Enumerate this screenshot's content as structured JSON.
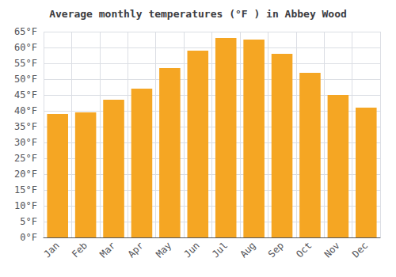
{
  "chart_data": {
    "type": "bar",
    "title": "Average monthly temperatures (°F ) in Abbey Wood",
    "categories": [
      "Jan",
      "Feb",
      "Mar",
      "Apr",
      "May",
      "Jun",
      "Jul",
      "Aug",
      "Sep",
      "Oct",
      "Nov",
      "Dec"
    ],
    "values": [
      39,
      39.5,
      43.5,
      47,
      53.5,
      59,
      63,
      62.5,
      58,
      52,
      45,
      41
    ],
    "color": "#F5A623",
    "ylim": [
      0,
      65
    ],
    "yticks": [
      {
        "value": 0,
        "label": "0°F"
      },
      {
        "value": 5,
        "label": "5°F"
      },
      {
        "value": 10,
        "label": "10°F"
      },
      {
        "value": 15,
        "label": "15°F"
      },
      {
        "value": 20,
        "label": "20°F"
      },
      {
        "value": 25,
        "label": "25°F"
      },
      {
        "value": 30,
        "label": "30°F"
      },
      {
        "value": 35,
        "label": "35°F"
      },
      {
        "value": 40,
        "label": "40°F"
      },
      {
        "value": 45,
        "label": "45°F"
      },
      {
        "value": 50,
        "label": "50°F"
      },
      {
        "value": 55,
        "label": "55°F"
      },
      {
        "value": 60,
        "label": "60°F"
      },
      {
        "value": 65,
        "label": "65°F"
      }
    ],
    "grid": true
  }
}
